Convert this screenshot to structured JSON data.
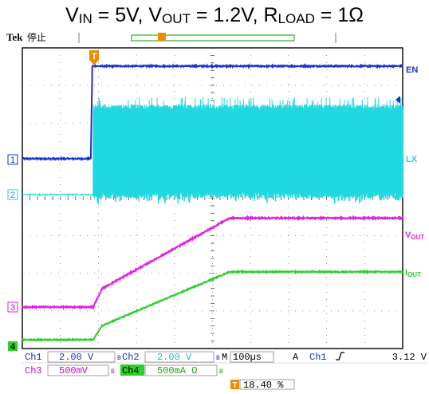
{
  "title": {
    "v_in_sym": "V",
    "v_in_sub": "IN",
    "v_in_val": " = 5V, ",
    "v_out_sym": "V",
    "v_out_sub": "OUT",
    "v_out_val": " = 1.2V, ",
    "r_load_sym": "R",
    "r_load_sub": "LOAD",
    "r_load_val": " = 1Ω"
  },
  "header": {
    "brand": "Tek",
    "status": "停止"
  },
  "channels": {
    "ch1": {
      "marker": "1",
      "label": "EN",
      "color": "#1a33cc"
    },
    "ch2": {
      "marker": "2",
      "label": "LX",
      "color": "#22d8e0"
    },
    "ch3": {
      "marker": "3",
      "label_sym": "V",
      "label_sub": "OUT",
      "color": "#e020e0"
    },
    "ch4": {
      "marker": "4",
      "label_sym": "I",
      "label_sub": "OUT",
      "color": "#2ccf2c"
    }
  },
  "trigger_marker": "T",
  "readout": {
    "row1": {
      "ch1_name": "Ch1",
      "ch1_scale": "2.00 V",
      "ch2_name": "Ch2",
      "ch2_scale": "2.00 V",
      "timebase_prefix": "M",
      "timebase": "100µs",
      "trigger_mode": "A",
      "trigger_source": "Ch1",
      "trigger_level": "3.12 V"
    },
    "row2": {
      "ch3_name": "Ch3",
      "ch3_scale": "500mV",
      "ch4_name": "Ch4",
      "ch4_scale": "500mA Ω"
    },
    "trigger_position": "18.40 %"
  },
  "chart_data": {
    "type": "line",
    "x_unit": "µs",
    "x_per_div": 100,
    "xlim": [
      0,
      1000
    ],
    "y_divisions": 8,
    "grid": true,
    "trigger_time": 184,
    "series": [
      {
        "name": "EN",
        "channel": "Ch1",
        "x": [
          0,
          180,
          184,
          1000
        ],
        "y": [
          0,
          0,
          4.3,
          4.3
        ]
      },
      {
        "name": "LX",
        "channel": "Ch2",
        "x": [
          0,
          186,
          1000
        ],
        "y": [
          0,
          0,
          4.75
        ],
        "note_switching": "square-wave switching between 0 V and ~4.75 V after 186 µs"
      },
      {
        "name": "VOUT",
        "channel": "Ch3",
        "x": [
          0,
          186,
          210,
          545,
          1000
        ],
        "y": [
          0,
          0,
          0.25,
          1.2,
          1.2
        ]
      },
      {
        "name": "IOUT",
        "channel": "Ch4",
        "x": [
          0,
          186,
          210,
          545,
          1000
        ],
        "y": [
          0,
          0,
          0.25,
          1.2,
          1.2
        ]
      }
    ]
  }
}
